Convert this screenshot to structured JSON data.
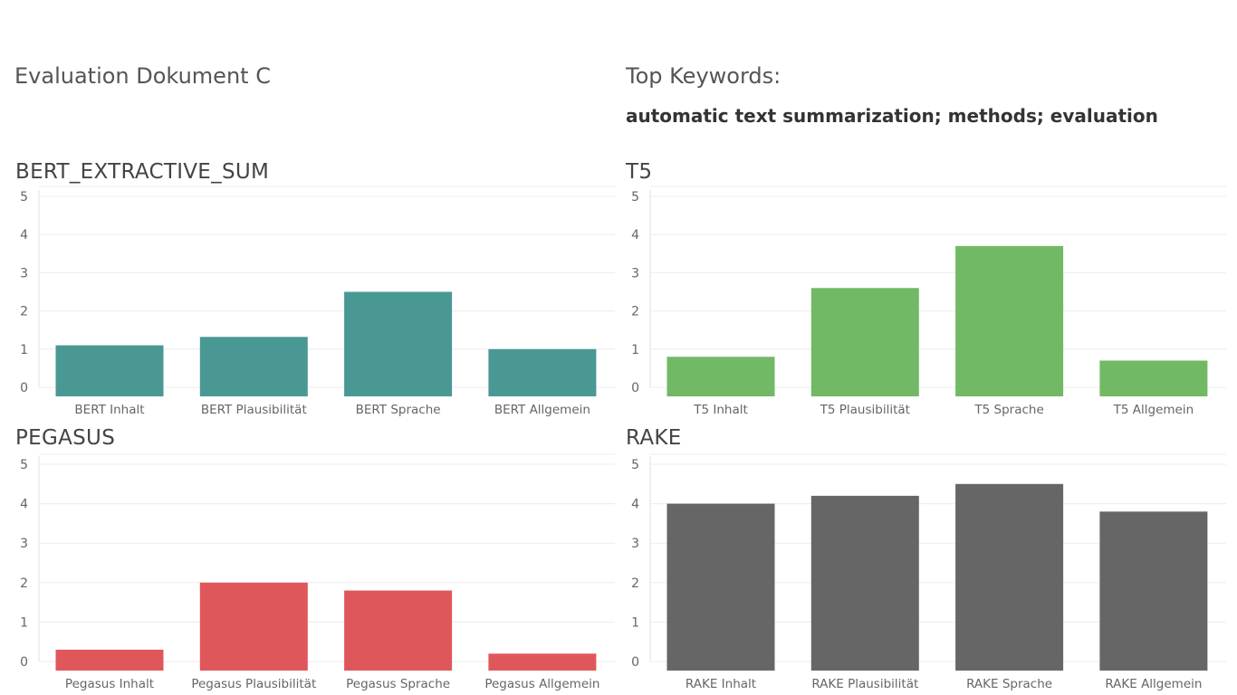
{
  "header": {
    "title": "Evaluation Dokument C",
    "keywords_label": "Top Keywords:",
    "keywords": "automatic text summarization; methods; evaluation"
  },
  "chart_data": [
    {
      "type": "bar",
      "title": "BERT_EXTRACTIVE_SUM",
      "categories": [
        "BERT Inhalt",
        "BERT Plausibilität",
        "BERT Sprache",
        "BERT Allgemein"
      ],
      "values": [
        1.1,
        1.32,
        2.5,
        1.0
      ],
      "yticks": [
        0,
        1,
        2,
        3,
        4,
        5
      ],
      "ylim": [
        0,
        5
      ],
      "color": "#4a9894",
      "grid": true
    },
    {
      "type": "bar",
      "title": "T5",
      "categories": [
        "T5 Inhalt",
        "T5 Plausibilität",
        "T5 Sprache",
        "T5 Allgemein"
      ],
      "values": [
        0.8,
        2.6,
        3.7,
        0.7
      ],
      "yticks": [
        0,
        1,
        2,
        3,
        4,
        5
      ],
      "ylim": [
        0,
        5
      ],
      "color": "#72b965",
      "grid": true
    },
    {
      "type": "bar",
      "title": "PEGASUS",
      "categories": [
        "Pegasus Inhalt",
        "Pegasus Plausibilität",
        "Pegasus Sprache",
        "Pegasus Allgemein"
      ],
      "values": [
        0.3,
        2.0,
        1.8,
        0.2
      ],
      "yticks": [
        0,
        1,
        2,
        3,
        4,
        5
      ],
      "ylim": [
        0,
        5
      ],
      "color": "#e0575b",
      "grid": true
    },
    {
      "type": "bar",
      "title": "RAKE",
      "categories": [
        "RAKE Inhalt",
        "RAKE Plausibilität",
        "RAKE Sprache",
        "RAKE Allgemein"
      ],
      "values": [
        4.0,
        4.2,
        4.5,
        3.8
      ],
      "yticks": [
        0,
        1,
        2,
        3,
        4,
        5
      ],
      "ylim": [
        0,
        5
      ],
      "color": "#666666",
      "grid": true
    }
  ]
}
